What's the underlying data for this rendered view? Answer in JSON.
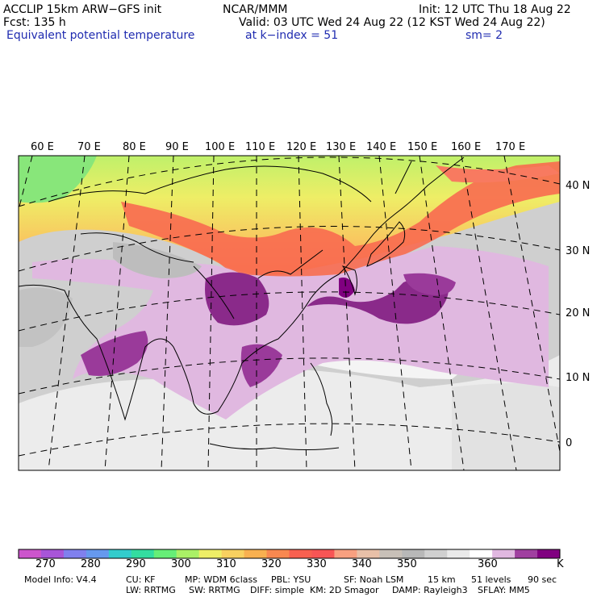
{
  "header": {
    "model": "ACCLIP 15km ARW−GFS init",
    "org": "NCAR/MMM",
    "init": "Init: 12 UTC Thu 18 Aug 22",
    "forecast": "Fcst:  135 h",
    "valid": "Valid: 03 UTC Wed 24 Aug 22 (12 KST Wed 24 Aug 22)",
    "field": "Equivalent potential temperature",
    "level": "at k−index =  51",
    "smoothing": "sm= 2"
  },
  "map": {
    "lon_labels": [
      "60 E",
      "70 E",
      "80 E",
      "90 E",
      "100 E",
      "110 E",
      "120 E",
      "130 E",
      "140 E",
      "150 E",
      "160 E",
      "170 E"
    ],
    "lat_labels": [
      "40 N",
      "30 N",
      "20 N",
      "10 N",
      "0"
    ]
  },
  "colorbar": {
    "colors": [
      "#cc55cc",
      "#a855d8",
      "#8080ee",
      "#6699ee",
      "#33cccc",
      "#33dda0",
      "#66ee77",
      "#aaf066",
      "#eeee66",
      "#f8d060",
      "#f8b050",
      "#f88850",
      "#f86050",
      "#f85555",
      "#f8a080",
      "#e8c0a8",
      "#c8c0b8",
      "#b8b8b8",
      "#d0d0d0",
      "#eaeaea",
      "#ffffff",
      "#e0b8e0",
      "#a040a0",
      "#800080"
    ],
    "labels": [
      "270",
      "280",
      "290",
      "300",
      "310",
      "320",
      "330",
      "340",
      "350",
      "360"
    ],
    "unit": "K"
  },
  "footer": {
    "line1": [
      "Model Info: V4.4",
      "CU: KF",
      "MP: WDM 6class",
      "PBL: YSU",
      "SF: Noah LSM",
      "15 km",
      "51 levels",
      "90 sec"
    ],
    "line2": [
      "LW: RRTMG",
      "SW: RRTMG",
      "DIFF: simple",
      "KM: 2D Smagor",
      "DAMP: Rayleigh3",
      "SFLAY: MM5"
    ]
  }
}
